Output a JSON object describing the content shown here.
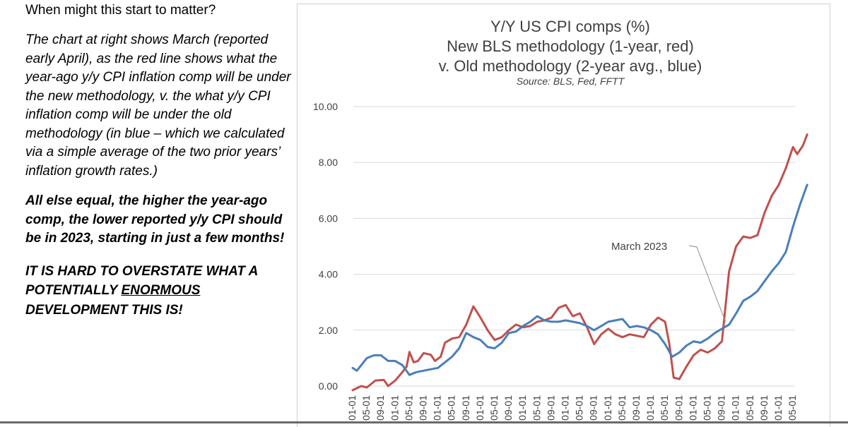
{
  "left_panel": {
    "heading": "When might this start to matter?",
    "description": "The chart at right shows March (reported early April), as the red line shows what the year-ago y/y CPI inflation comp will be under the new methodology, v. the what y/y CPI inflation comp will be under the old methodology (in blue – which we calculated via a simple average of the two prior years’ inflation growth rates.)",
    "emphasis": "All else equal, the higher the year-ago comp, the lower reported y/y CPI should be in 2023, starting in just a few months!",
    "warning_before": "IT IS HARD TO OVERSTATE WHAT A POTENTIALLY ",
    "warning_underlined": "ENORMOUS",
    "warning_after": " DEVELOPMENT THIS IS!"
  },
  "chart_data": {
    "type": "line",
    "title_lines": [
      "Y/Y US CPI comps (%)",
      "New BLS methodology (1-year, red)",
      "v. Old methodology (2-year avg., blue)"
    ],
    "source": "Source: BLS, Fed, FFTT",
    "y_ticks": [
      "10.00",
      "8.00",
      "6.00",
      "4.00",
      "2.00",
      "0.00"
    ],
    "ylim": [
      0,
      10
    ],
    "x_tick_labels": [
      "01-01",
      "05-01",
      "09-01",
      "01-01",
      "05-01",
      "09-01",
      "01-01",
      "05-01",
      "09-01",
      "01-01",
      "05-01",
      "09-01",
      "01-01",
      "05-01",
      "09-01",
      "01-01",
      "05-01",
      "09-01",
      "01-01",
      "05-01",
      "09-01",
      "01-01",
      "05-01",
      "09-01",
      "01-01",
      "05-01",
      "09-01",
      "01-01",
      "05-01",
      "09-01",
      "01-01",
      "05-01"
    ],
    "annotation": {
      "text": "March 2023",
      "target_x": 26.25
    },
    "series": [
      {
        "name": "New BLS methodology (1-year)",
        "color": "#c0504d",
        "points": [
          [
            0,
            -0.15
          ],
          [
            0.6,
            0.0
          ],
          [
            1,
            -0.05
          ],
          [
            1.6,
            0.2
          ],
          [
            2.2,
            0.22
          ],
          [
            2.5,
            0.0
          ],
          [
            3,
            0.2
          ],
          [
            3.5,
            0.5
          ],
          [
            3.8,
            0.7
          ],
          [
            4,
            1.22
          ],
          [
            4.3,
            0.85
          ],
          [
            4.6,
            0.9
          ],
          [
            5,
            1.18
          ],
          [
            5.5,
            1.12
          ],
          [
            5.8,
            0.9
          ],
          [
            6.2,
            1.05
          ],
          [
            6.5,
            1.55
          ],
          [
            7,
            1.7
          ],
          [
            7.5,
            1.75
          ],
          [
            8,
            2.2
          ],
          [
            8.5,
            2.85
          ],
          [
            9,
            2.45
          ],
          [
            9.5,
            2.0
          ],
          [
            10,
            1.65
          ],
          [
            10.5,
            1.75
          ],
          [
            11,
            2.0
          ],
          [
            11.5,
            2.2
          ],
          [
            12,
            2.1
          ],
          [
            12.5,
            2.15
          ],
          [
            13,
            2.3
          ],
          [
            13.5,
            2.35
          ],
          [
            14,
            2.45
          ],
          [
            14.5,
            2.8
          ],
          [
            15,
            2.9
          ],
          [
            15.5,
            2.5
          ],
          [
            16,
            2.6
          ],
          [
            16.5,
            2.1
          ],
          [
            17,
            1.5
          ],
          [
            17.5,
            1.85
          ],
          [
            18,
            2.05
          ],
          [
            18.5,
            1.85
          ],
          [
            19,
            1.75
          ],
          [
            19.5,
            1.85
          ],
          [
            20,
            1.8
          ],
          [
            20.5,
            1.75
          ],
          [
            21,
            2.2
          ],
          [
            21.5,
            2.45
          ],
          [
            22,
            2.3
          ],
          [
            22.3,
            1.5
          ],
          [
            22.6,
            0.3
          ],
          [
            23,
            0.25
          ],
          [
            23.5,
            0.7
          ],
          [
            24,
            1.1
          ],
          [
            24.5,
            1.3
          ],
          [
            25,
            1.2
          ],
          [
            25.5,
            1.35
          ],
          [
            26,
            1.6
          ],
          [
            26.5,
            4.1
          ],
          [
            27,
            5.0
          ],
          [
            27.5,
            5.35
          ],
          [
            28,
            5.3
          ],
          [
            28.5,
            5.4
          ],
          [
            29,
            6.2
          ],
          [
            29.5,
            6.8
          ],
          [
            30,
            7.2
          ],
          [
            30.5,
            7.8
          ],
          [
            31,
            8.55
          ],
          [
            31.3,
            8.3
          ],
          [
            31.7,
            8.6
          ],
          [
            32,
            9.0
          ]
        ]
      },
      {
        "name": "Old methodology (2-year avg.)",
        "color": "#4a7ebb",
        "points": [
          [
            0,
            0.65
          ],
          [
            0.3,
            0.55
          ],
          [
            1,
            1.0
          ],
          [
            1.5,
            1.1
          ],
          [
            2,
            1.1
          ],
          [
            2.5,
            0.9
          ],
          [
            3,
            0.9
          ],
          [
            3.5,
            0.75
          ],
          [
            4,
            0.4
          ],
          [
            4.5,
            0.5
          ],
          [
            5,
            0.55
          ],
          [
            5.5,
            0.6
          ],
          [
            6,
            0.65
          ],
          [
            6.5,
            0.85
          ],
          [
            7,
            1.05
          ],
          [
            7.5,
            1.35
          ],
          [
            8,
            1.9
          ],
          [
            8.5,
            1.75
          ],
          [
            9,
            1.65
          ],
          [
            9.5,
            1.4
          ],
          [
            10,
            1.35
          ],
          [
            10.5,
            1.55
          ],
          [
            11,
            1.9
          ],
          [
            11.5,
            1.95
          ],
          [
            12,
            2.15
          ],
          [
            12.5,
            2.3
          ],
          [
            13,
            2.5
          ],
          [
            13.5,
            2.35
          ],
          [
            14,
            2.3
          ],
          [
            14.5,
            2.3
          ],
          [
            15,
            2.35
          ],
          [
            15.5,
            2.3
          ],
          [
            16,
            2.25
          ],
          [
            16.5,
            2.15
          ],
          [
            17,
            2.0
          ],
          [
            17.5,
            2.15
          ],
          [
            18,
            2.3
          ],
          [
            18.5,
            2.35
          ],
          [
            19,
            2.4
          ],
          [
            19.5,
            2.1
          ],
          [
            20,
            2.15
          ],
          [
            20.5,
            2.1
          ],
          [
            21,
            2.0
          ],
          [
            21.5,
            1.85
          ],
          [
            22,
            1.5
          ],
          [
            22.5,
            1.05
          ],
          [
            23,
            1.2
          ],
          [
            23.5,
            1.45
          ],
          [
            24,
            1.6
          ],
          [
            24.5,
            1.55
          ],
          [
            25,
            1.7
          ],
          [
            25.5,
            1.9
          ],
          [
            26,
            2.05
          ],
          [
            26.5,
            2.2
          ],
          [
            27,
            2.6
          ],
          [
            27.5,
            3.05
          ],
          [
            28,
            3.2
          ],
          [
            28.5,
            3.4
          ],
          [
            29,
            3.75
          ],
          [
            29.5,
            4.1
          ],
          [
            30,
            4.4
          ],
          [
            30.5,
            4.8
          ],
          [
            31,
            5.7
          ],
          [
            31.5,
            6.5
          ],
          [
            32,
            7.2
          ]
        ]
      }
    ]
  }
}
